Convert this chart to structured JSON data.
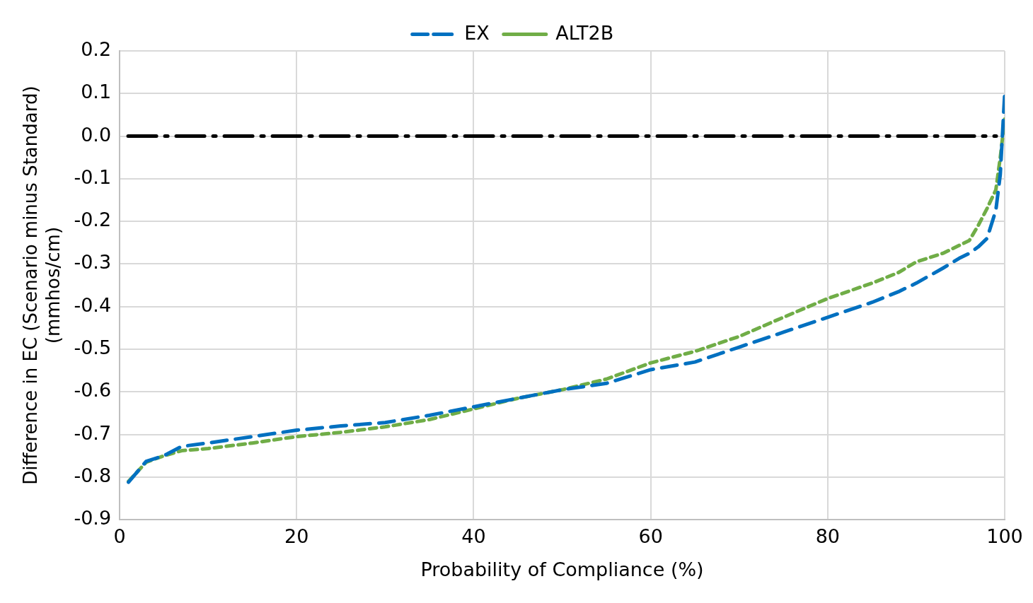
{
  "chart_data": {
    "type": "line",
    "xlabel": "Probability of Compliance (%)",
    "ylabel": "Difference in EC (Scenario minus Standard) (mmhos/cm)",
    "xlim": [
      0,
      100
    ],
    "xticks": [
      0,
      20,
      40,
      60,
      80,
      100
    ],
    "ylim": [
      -0.9,
      0.2
    ],
    "yticks": [
      0.2,
      0.1,
      {
        "value": 0,
        "label": "0.0"
      },
      -0.1,
      -0.2,
      -0.3,
      -0.4,
      -0.5,
      -0.6,
      -0.7,
      -0.8,
      -0.9
    ],
    "grid": true,
    "legend": "top",
    "marker": "none",
    "x": [
      1,
      3,
      5,
      7,
      10,
      15,
      20,
      25,
      30,
      35,
      40,
      45,
      50,
      55,
      60,
      65,
      70,
      75,
      80,
      85,
      88,
      90,
      93,
      95,
      96,
      97,
      98,
      99,
      99.5,
      100
    ],
    "series": [
      {
        "name": "EX",
        "color": "#0070c0",
        "line_style": "dashed",
        "values": [
          -0.812,
          -0.763,
          -0.75,
          -0.728,
          -0.72,
          -0.705,
          -0.69,
          -0.68,
          -0.672,
          -0.655,
          -0.635,
          -0.615,
          -0.595,
          -0.58,
          -0.548,
          -0.53,
          -0.495,
          -0.46,
          -0.425,
          -0.39,
          -0.365,
          -0.345,
          -0.31,
          -0.285,
          -0.275,
          -0.26,
          -0.24,
          -0.174,
          -0.09,
          0.1
        ]
      },
      {
        "name": "ALT2B",
        "color": "#70ad47",
        "line_style": "dotted",
        "values": [
          -0.81,
          -0.765,
          -0.75,
          -0.738,
          -0.733,
          -0.72,
          -0.705,
          -0.695,
          -0.682,
          -0.665,
          -0.64,
          -0.615,
          -0.595,
          -0.57,
          -0.532,
          -0.505,
          -0.47,
          -0.425,
          -0.381,
          -0.345,
          -0.32,
          -0.295,
          -0.275,
          -0.255,
          -0.245,
          -0.21,
          -0.17,
          -0.126,
          -0.05,
          0.04
        ]
      }
    ],
    "ref_lines": [
      {
        "axis": "y",
        "value": 0,
        "color": "#000000",
        "line_style": "dashed"
      }
    ]
  }
}
